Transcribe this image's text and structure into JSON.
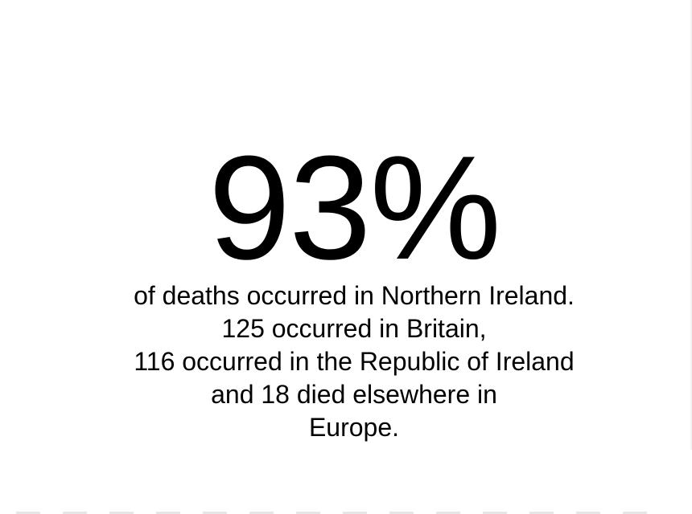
{
  "headline": {
    "percentage": "93%"
  },
  "caption": {
    "line1": "of deaths occurred in Northern Ireland.",
    "line2": "125 occurred in Britain,",
    "line3": "116 occurred in the Republic of Ireland",
    "line4": "and 18 died elsewhere in",
    "line5": "Europe."
  }
}
